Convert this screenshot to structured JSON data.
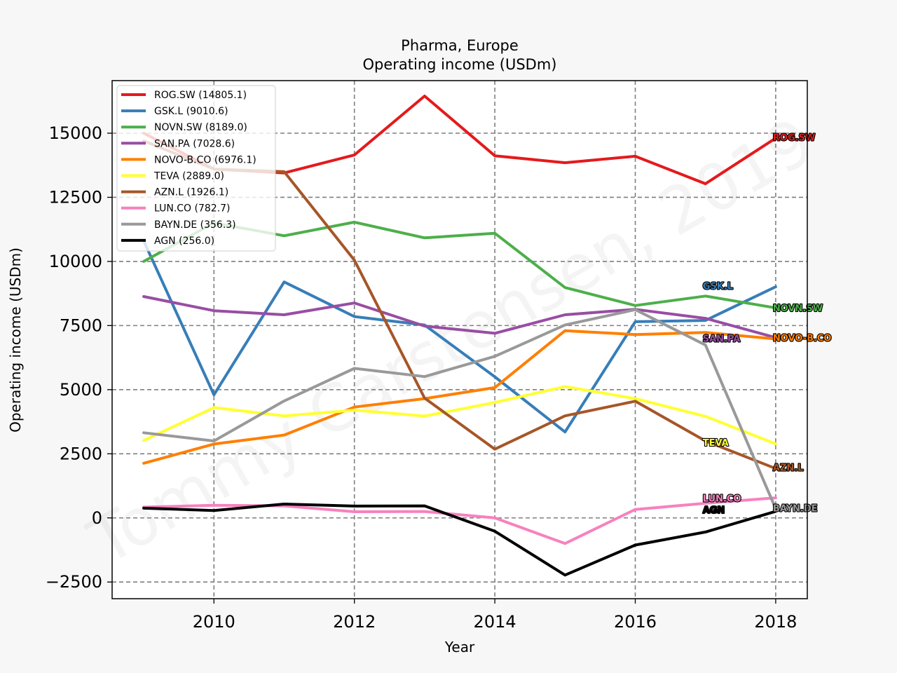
{
  "chart_data": {
    "type": "line",
    "title": "Pharma, Europe",
    "subtitle": "Operating income (USDm)",
    "xlabel": "Year",
    "ylabel": "Operating income (USDm)",
    "xlim": [
      2008.55,
      2018.45
    ],
    "ylim": [
      -3150,
      17050
    ],
    "xticks": [
      2010,
      2012,
      2014,
      2016,
      2018
    ],
    "yticks": [
      -2500,
      0,
      2500,
      5000,
      7500,
      10000,
      12500,
      15000
    ],
    "grid": true,
    "legend_position": "upper-left",
    "watermark": "Tommy Carstensen, 2019",
    "x": [
      2009,
      2010,
      2011,
      2012,
      2013,
      2014,
      2015,
      2016,
      2017,
      2018
    ],
    "series": [
      {
        "name": "ROG.SW",
        "legend": "ROG.SW (14805.1)",
        "label": "ROG.SW",
        "color": "#e41a1c",
        "values": [
          15000,
          13600,
          13450,
          14150,
          16450,
          14120,
          13850,
          14100,
          13030,
          14805.1
        ]
      },
      {
        "name": "GSK.L",
        "legend": "GSK.L (9010.6)",
        "label": "GSK.L",
        "color": "#377eb8",
        "values": [
          10800,
          4800,
          9200,
          7850,
          7520,
          5500,
          3350,
          7650,
          7700,
          9010.6
        ]
      },
      {
        "name": "NOVN.SW",
        "legend": "NOVN.SW (8189.0)",
        "label": "NOVN.SW",
        "color": "#4daf4a",
        "values": [
          10000,
          11500,
          11000,
          11530,
          10920,
          11100,
          8980,
          8280,
          8650,
          8189.0
        ]
      },
      {
        "name": "SAN.PA",
        "legend": "SAN.PA (7028.6)",
        "label": "SAN.PA",
        "color": "#984ea3",
        "values": [
          8630,
          8080,
          7920,
          8380,
          7480,
          7200,
          7920,
          8130,
          7780,
          7028.6
        ]
      },
      {
        "name": "NOVO-B.CO",
        "legend": "NOVO-B.CO (6976.1)",
        "label": "NOVO-B.CO",
        "color": "#ff7f00",
        "values": [
          2130,
          2880,
          3230,
          4320,
          4650,
          5080,
          7300,
          7150,
          7230,
          6976.1
        ]
      },
      {
        "name": "TEVA",
        "legend": "TEVA (2889.0)",
        "label": "TEVA",
        "color": "#ffff33",
        "values": [
          3020,
          4300,
          3980,
          4200,
          3970,
          4500,
          5120,
          4650,
          3960,
          2889.0
        ]
      },
      {
        "name": "AZN.L",
        "legend": "AZN.L (1926.1)",
        "label": "AZN.L",
        "color": "#a65628",
        "values": [
          14700,
          13600,
          13500,
          10050,
          4670,
          2680,
          3980,
          4550,
          3000,
          1926.1
        ]
      },
      {
        "name": "LUN.CO",
        "legend": "LUN.CO (782.7)",
        "label": "LUN.CO",
        "color": "#f781bf",
        "values": [
          420,
          490,
          470,
          240,
          250,
          0,
          -1000,
          330,
          570,
          782.7
        ]
      },
      {
        "name": "BAYN.DE",
        "legend": "BAYN.DE (356.3)",
        "label": "BAYN.DE",
        "color": "#999999",
        "values": [
          3320,
          3000,
          4560,
          5830,
          5510,
          6300,
          7520,
          8120,
          6740,
          356.3
        ]
      },
      {
        "name": "AGN",
        "legend": "AGN (256.0)",
        "label": "AGN",
        "color": "#000000",
        "values": [
          380,
          290,
          540,
          460,
          470,
          -520,
          -2230,
          -1060,
          -550,
          256.0
        ]
      }
    ]
  }
}
